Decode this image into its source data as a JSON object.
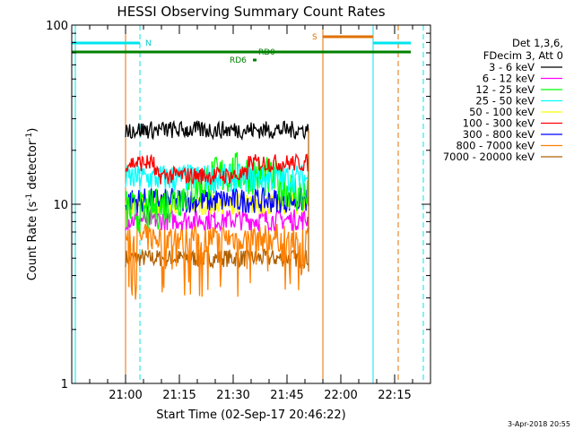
{
  "chart_data": {
    "type": "line",
    "title": "HESSI Observing Summary Count Rates",
    "xlabel": "Start Time (02-Sep-17 20:46:22)",
    "ylabel_main": "Count Rate (s",
    "ylabel_sup1": "-1",
    "ylabel_mid": " detector",
    "ylabel_sup2": "-1",
    "ylabel_end": ")",
    "y_scale": "log",
    "ylim": [
      1,
      100
    ],
    "xlim_minutes": [
      -15,
      85
    ],
    "x_ticks": [
      {
        "label": "21:00",
        "min": 0
      },
      {
        "label": "21:15",
        "min": 15
      },
      {
        "label": "21:30",
        "min": 30
      },
      {
        "label": "21:45",
        "min": 45
      },
      {
        "label": "22:00",
        "min": 60
      },
      {
        "label": "22:15",
        "min": 75
      }
    ],
    "y_ticks": [
      {
        "label": "1",
        "value": 1
      },
      {
        "label": "10",
        "value": 10
      },
      {
        "label": "100",
        "value": 100
      }
    ],
    "legend_header": [
      "Det 1,3,6,",
      "FDecim 3, Att 0"
    ],
    "data_window_minutes": [
      0,
      51
    ],
    "series": [
      {
        "name": "3 - 6 keV",
        "color": "#000000",
        "level": 26,
        "spread": 0.05
      },
      {
        "name": "6 - 12 keV",
        "color": "#ff00ff",
        "level": 8.2,
        "spread": 0.06
      },
      {
        "name": "12 - 25 keV",
        "color": "#00ff00",
        "level": 12,
        "spread": 0.12
      },
      {
        "name": "25 - 50 keV",
        "color": "#00ffff",
        "level": 14,
        "spread": 0.08
      },
      {
        "name": "50 - 100 keV",
        "color": "#ffff00",
        "level": 10,
        "spread": 0.06
      },
      {
        "name": "100 - 300 keV",
        "color": "#ff0000",
        "level": 17,
        "spread": 0.05
      },
      {
        "name": "300 - 800 keV",
        "color": "#0000ff",
        "level": 10.5,
        "spread": 0.07
      },
      {
        "name": "800 - 7000 keV",
        "color": "#ff8000",
        "level": 6.5,
        "spread": 0.08
      },
      {
        "name": "7000 - 20000 keV",
        "color": "#b06000",
        "level": 5,
        "spread": 0.05
      }
    ],
    "annotations": {
      "night_label": "N",
      "saa_label": "S",
      "rd_labels": [
        "RD0",
        "RD6"
      ]
    },
    "footer_date": "3-Apr-2018 20:55"
  }
}
